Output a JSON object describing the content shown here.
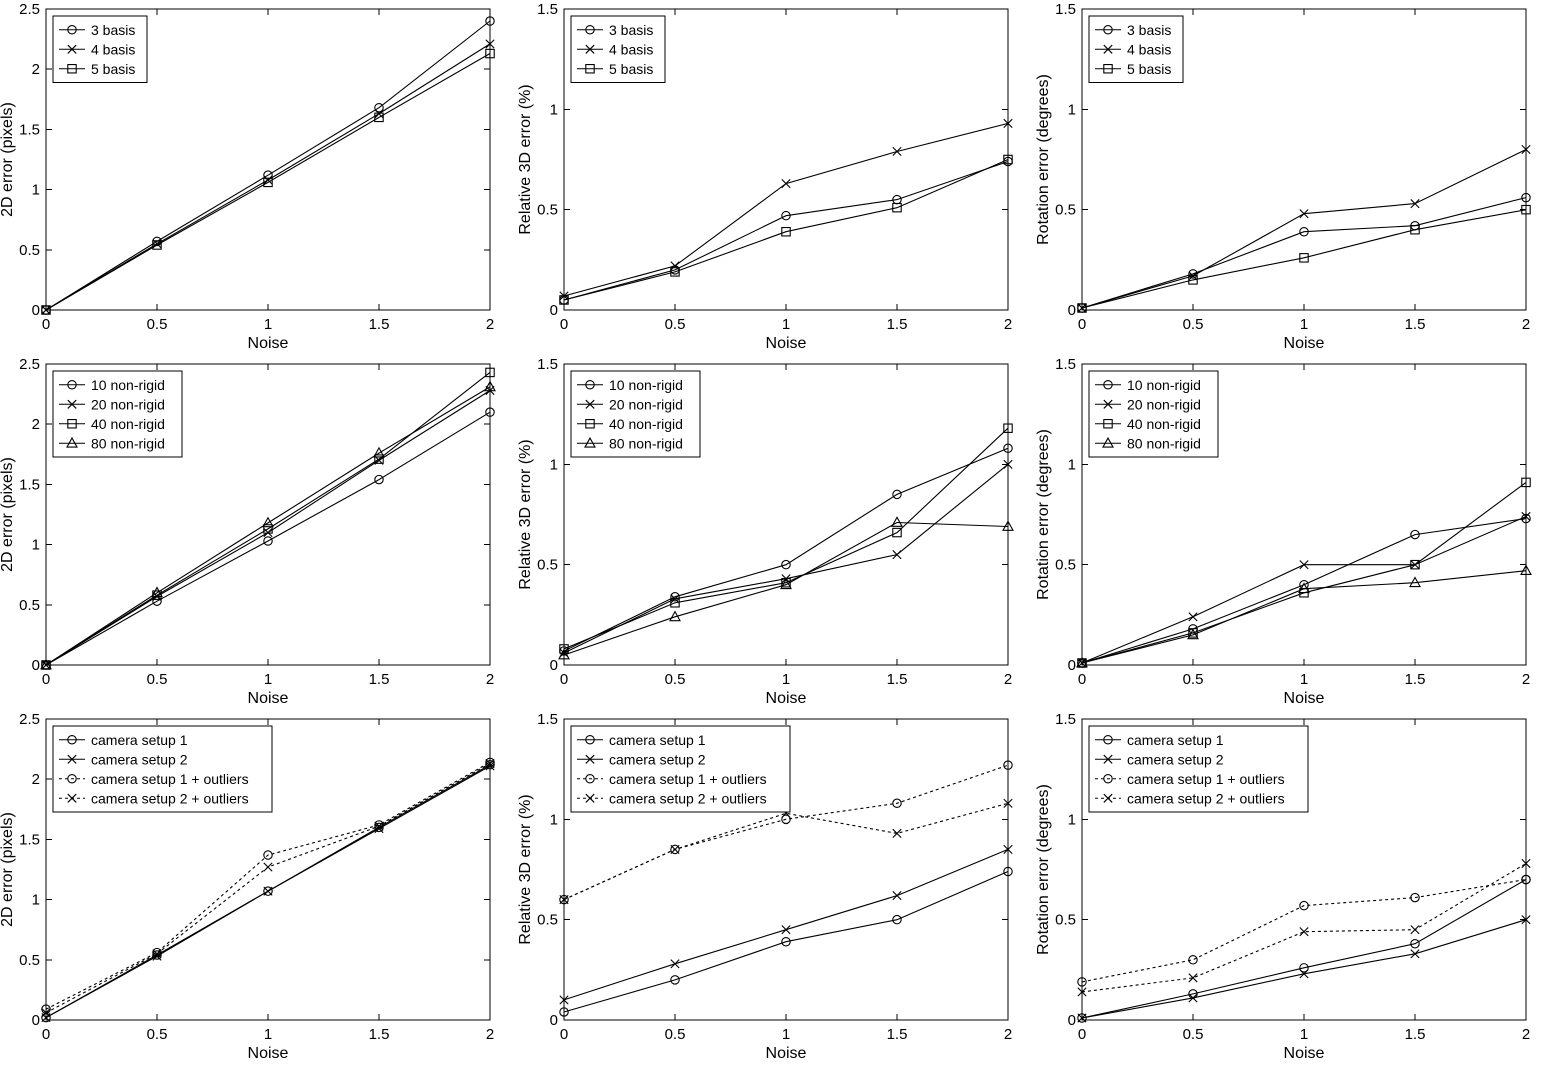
{
  "figure": {
    "rows": 3,
    "cols": 3,
    "background": "#ffffff",
    "line_color": "#000000"
  },
  "chart_data": [
    {
      "type": "line",
      "title": "",
      "xlabel": "Noise",
      "ylabel": "2D error (pixels)",
      "xlim": [
        0,
        2
      ],
      "ylim": [
        0,
        2.5
      ],
      "xticks": [
        0,
        0.5,
        1,
        1.5,
        2
      ],
      "yticks": [
        0,
        0.5,
        1,
        1.5,
        2,
        2.5
      ],
      "grid": false,
      "legend_position": "top-left",
      "x": [
        0,
        0.5,
        1,
        1.5,
        2
      ],
      "series": [
        {
          "name": "3 basis",
          "marker": "circle",
          "line": "solid",
          "values": [
            0,
            0.57,
            1.12,
            1.68,
            2.4
          ]
        },
        {
          "name": "4 basis",
          "marker": "x",
          "line": "solid",
          "values": [
            0,
            0.55,
            1.08,
            1.63,
            2.21
          ]
        },
        {
          "name": "5 basis",
          "marker": "square",
          "line": "solid",
          "values": [
            0,
            0.54,
            1.06,
            1.6,
            2.13
          ]
        }
      ]
    },
    {
      "type": "line",
      "title": "",
      "xlabel": "Noise",
      "ylabel": "Relative 3D error (%)",
      "xlim": [
        0,
        2
      ],
      "ylim": [
        0,
        1.5
      ],
      "xticks": [
        0,
        0.5,
        1,
        1.5,
        2
      ],
      "yticks": [
        0,
        0.5,
        1,
        1.5
      ],
      "grid": false,
      "legend_position": "top-left",
      "x": [
        0,
        0.5,
        1,
        1.5,
        2
      ],
      "series": [
        {
          "name": "3 basis",
          "marker": "circle",
          "line": "solid",
          "values": [
            0.05,
            0.2,
            0.47,
            0.55,
            0.74
          ]
        },
        {
          "name": "4 basis",
          "marker": "x",
          "line": "solid",
          "values": [
            0.07,
            0.22,
            0.63,
            0.79,
            0.93
          ]
        },
        {
          "name": "5 basis",
          "marker": "square",
          "line": "solid",
          "values": [
            0.05,
            0.19,
            0.39,
            0.51,
            0.75
          ]
        }
      ]
    },
    {
      "type": "line",
      "title": "",
      "xlabel": "Noise",
      "ylabel": "Rotation error (degrees)",
      "xlim": [
        0,
        2
      ],
      "ylim": [
        0,
        1.5
      ],
      "xticks": [
        0,
        0.5,
        1,
        1.5,
        2
      ],
      "yticks": [
        0,
        0.5,
        1,
        1.5
      ],
      "grid": false,
      "legend_position": "top-left",
      "x": [
        0,
        0.5,
        1,
        1.5,
        2
      ],
      "series": [
        {
          "name": "3 basis",
          "marker": "circle",
          "line": "solid",
          "values": [
            0.01,
            0.18,
            0.39,
            0.42,
            0.56
          ]
        },
        {
          "name": "4 basis",
          "marker": "x",
          "line": "solid",
          "values": [
            0.01,
            0.17,
            0.48,
            0.53,
            0.8
          ]
        },
        {
          "name": "5 basis",
          "marker": "square",
          "line": "solid",
          "values": [
            0.01,
            0.15,
            0.26,
            0.4,
            0.5
          ]
        }
      ]
    },
    {
      "type": "line",
      "title": "",
      "xlabel": "Noise",
      "ylabel": "2D error (pixels)",
      "xlim": [
        0,
        2
      ],
      "ylim": [
        0,
        2.5
      ],
      "xticks": [
        0,
        0.5,
        1,
        1.5,
        2
      ],
      "yticks": [
        0,
        0.5,
        1,
        1.5,
        2,
        2.5
      ],
      "grid": false,
      "legend_position": "top-left",
      "x": [
        0,
        0.5,
        1,
        1.5,
        2
      ],
      "series": [
        {
          "name": "10 non-rigid",
          "marker": "circle",
          "line": "solid",
          "values": [
            0,
            0.53,
            1.03,
            1.54,
            2.1
          ]
        },
        {
          "name": "20 non-rigid",
          "marker": "x",
          "line": "solid",
          "values": [
            0,
            0.57,
            1.1,
            1.7,
            2.28
          ]
        },
        {
          "name": "40 non-rigid",
          "marker": "square",
          "line": "solid",
          "values": [
            0,
            0.58,
            1.13,
            1.71,
            2.43
          ]
        },
        {
          "name": "80 non-rigid",
          "marker": "triangle",
          "line": "solid",
          "values": [
            0,
            0.6,
            1.18,
            1.76,
            2.31
          ]
        }
      ]
    },
    {
      "type": "line",
      "title": "",
      "xlabel": "Noise",
      "ylabel": "Relative 3D error (%)",
      "xlim": [
        0,
        2
      ],
      "ylim": [
        0,
        1.5
      ],
      "xticks": [
        0,
        0.5,
        1,
        1.5,
        2
      ],
      "yticks": [
        0,
        0.5,
        1,
        1.5
      ],
      "grid": false,
      "legend_position": "top-left",
      "x": [
        0,
        0.5,
        1,
        1.5,
        2
      ],
      "series": [
        {
          "name": "10 non-rigid",
          "marker": "circle",
          "line": "solid",
          "values": [
            0.07,
            0.34,
            0.5,
            0.85,
            1.08
          ]
        },
        {
          "name": "20 non-rigid",
          "marker": "x",
          "line": "solid",
          "values": [
            0.06,
            0.33,
            0.43,
            0.55,
            1.0
          ]
        },
        {
          "name": "40 non-rigid",
          "marker": "square",
          "line": "solid",
          "values": [
            0.08,
            0.31,
            0.41,
            0.66,
            1.18
          ]
        },
        {
          "name": "80 non-rigid",
          "marker": "triangle",
          "line": "solid",
          "values": [
            0.05,
            0.24,
            0.4,
            0.71,
            0.69
          ]
        }
      ]
    },
    {
      "type": "line",
      "title": "",
      "xlabel": "Noise",
      "ylabel": "Rotation error (degrees)",
      "xlim": [
        0,
        2
      ],
      "ylim": [
        0,
        1.5
      ],
      "xticks": [
        0,
        0.5,
        1,
        1.5,
        2
      ],
      "yticks": [
        0,
        0.5,
        1,
        1.5
      ],
      "grid": false,
      "legend_position": "top-left",
      "x": [
        0,
        0.5,
        1,
        1.5,
        2
      ],
      "series": [
        {
          "name": "10 non-rigid",
          "marker": "circle",
          "line": "solid",
          "values": [
            0.01,
            0.18,
            0.4,
            0.65,
            0.73
          ]
        },
        {
          "name": "20 non-rigid",
          "marker": "x",
          "line": "solid",
          "values": [
            0.01,
            0.24,
            0.5,
            0.5,
            0.74
          ]
        },
        {
          "name": "40 non-rigid",
          "marker": "square",
          "line": "solid",
          "values": [
            0.01,
            0.16,
            0.36,
            0.5,
            0.91
          ]
        },
        {
          "name": "80 non-rigid",
          "marker": "triangle",
          "line": "solid",
          "values": [
            0.01,
            0.15,
            0.38,
            0.41,
            0.47
          ]
        }
      ]
    },
    {
      "type": "line",
      "title": "",
      "xlabel": "Noise",
      "ylabel": "2D error (pixels)",
      "xlim": [
        0,
        2
      ],
      "ylim": [
        0,
        2.5
      ],
      "xticks": [
        0,
        0.5,
        1,
        1.5,
        2
      ],
      "yticks": [
        0,
        0.5,
        1,
        1.5,
        2,
        2.5
      ],
      "grid": false,
      "legend_position": "top-left",
      "x": [
        0,
        0.5,
        1,
        1.5,
        2
      ],
      "series": [
        {
          "name": "camera setup 1",
          "marker": "circle",
          "line": "solid",
          "values": [
            0.02,
            0.54,
            1.07,
            1.6,
            2.12
          ]
        },
        {
          "name": "camera setup 2",
          "marker": "x",
          "line": "solid",
          "values": [
            0.02,
            0.53,
            1.07,
            1.59,
            2.11
          ]
        },
        {
          "name": "camera setup 1 + outliers",
          "marker": "circle",
          "line": "dashed",
          "values": [
            0.09,
            0.56,
            1.37,
            1.62,
            2.14
          ]
        },
        {
          "name": "camera setup 2 + outliers",
          "marker": "x",
          "line": "dashed",
          "values": [
            0.06,
            0.55,
            1.27,
            1.61,
            2.13
          ]
        }
      ]
    },
    {
      "type": "line",
      "title": "",
      "xlabel": "Noise",
      "ylabel": "Relative 3D error (%)",
      "xlim": [
        0,
        2
      ],
      "ylim": [
        0,
        1.5
      ],
      "xticks": [
        0,
        0.5,
        1,
        1.5,
        2
      ],
      "yticks": [
        0,
        0.5,
        1,
        1.5
      ],
      "grid": false,
      "legend_position": "top-left",
      "x": [
        0,
        0.5,
        1,
        1.5,
        2
      ],
      "series": [
        {
          "name": "camera setup 1",
          "marker": "circle",
          "line": "solid",
          "values": [
            0.04,
            0.2,
            0.39,
            0.5,
            0.74
          ]
        },
        {
          "name": "camera setup 2",
          "marker": "x",
          "line": "solid",
          "values": [
            0.1,
            0.28,
            0.45,
            0.62,
            0.85
          ]
        },
        {
          "name": "camera setup 1 + outliers",
          "marker": "circle",
          "line": "dashed",
          "values": [
            0.6,
            0.85,
            1.0,
            1.08,
            1.27
          ]
        },
        {
          "name": "camera setup 2 + outliers",
          "marker": "x",
          "line": "dashed",
          "values": [
            0.6,
            0.85,
            1.03,
            0.93,
            1.08
          ]
        }
      ]
    },
    {
      "type": "line",
      "title": "",
      "xlabel": "Noise",
      "ylabel": "Rotation error (degrees)",
      "xlim": [
        0,
        2
      ],
      "ylim": [
        0,
        1.5
      ],
      "xticks": [
        0,
        0.5,
        1,
        1.5,
        2
      ],
      "yticks": [
        0,
        0.5,
        1,
        1.5
      ],
      "grid": false,
      "legend_position": "top-left",
      "x": [
        0,
        0.5,
        1,
        1.5,
        2
      ],
      "series": [
        {
          "name": "camera setup 1",
          "marker": "circle",
          "line": "solid",
          "values": [
            0.01,
            0.13,
            0.26,
            0.38,
            0.7
          ]
        },
        {
          "name": "camera setup 2",
          "marker": "x",
          "line": "solid",
          "values": [
            0.01,
            0.11,
            0.23,
            0.33,
            0.5
          ]
        },
        {
          "name": "camera setup 1 + outliers",
          "marker": "circle",
          "line": "dashed",
          "values": [
            0.19,
            0.3,
            0.57,
            0.61,
            0.7
          ]
        },
        {
          "name": "camera setup 2 + outliers",
          "marker": "x",
          "line": "dashed",
          "values": [
            0.14,
            0.21,
            0.44,
            0.45,
            0.78
          ]
        }
      ]
    }
  ]
}
